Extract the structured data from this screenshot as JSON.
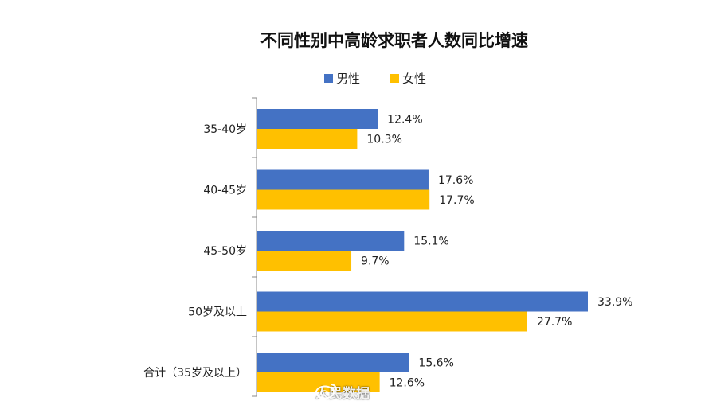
{
  "chart_data": {
    "type": "bar",
    "orientation": "horizontal",
    "title": "不同性别中高龄求职者人数同比增速",
    "categories": [
      "35-40岁",
      "40-45岁",
      "45-50岁",
      "50岁及以上",
      "合计（35岁及以上）"
    ],
    "series": [
      {
        "name": "男性",
        "color": "#4472C4",
        "values": [
          12.4,
          17.6,
          15.1,
          33.9,
          15.6
        ],
        "labels": [
          "12.4%",
          "17.6%",
          "15.1%",
          "33.9%",
          "15.6%"
        ]
      },
      {
        "name": "女性",
        "color": "#FFC000",
        "values": [
          10.3,
          17.7,
          9.7,
          27.7,
          12.6
        ],
        "labels": [
          "10.3%",
          "17.7%",
          "9.7%",
          "27.7%",
          "12.6%"
        ]
      }
    ],
    "xlim": [
      0,
      36
    ],
    "legend_position": "top-center",
    "grid": false
  },
  "watermark": {
    "text": "人民数据"
  }
}
